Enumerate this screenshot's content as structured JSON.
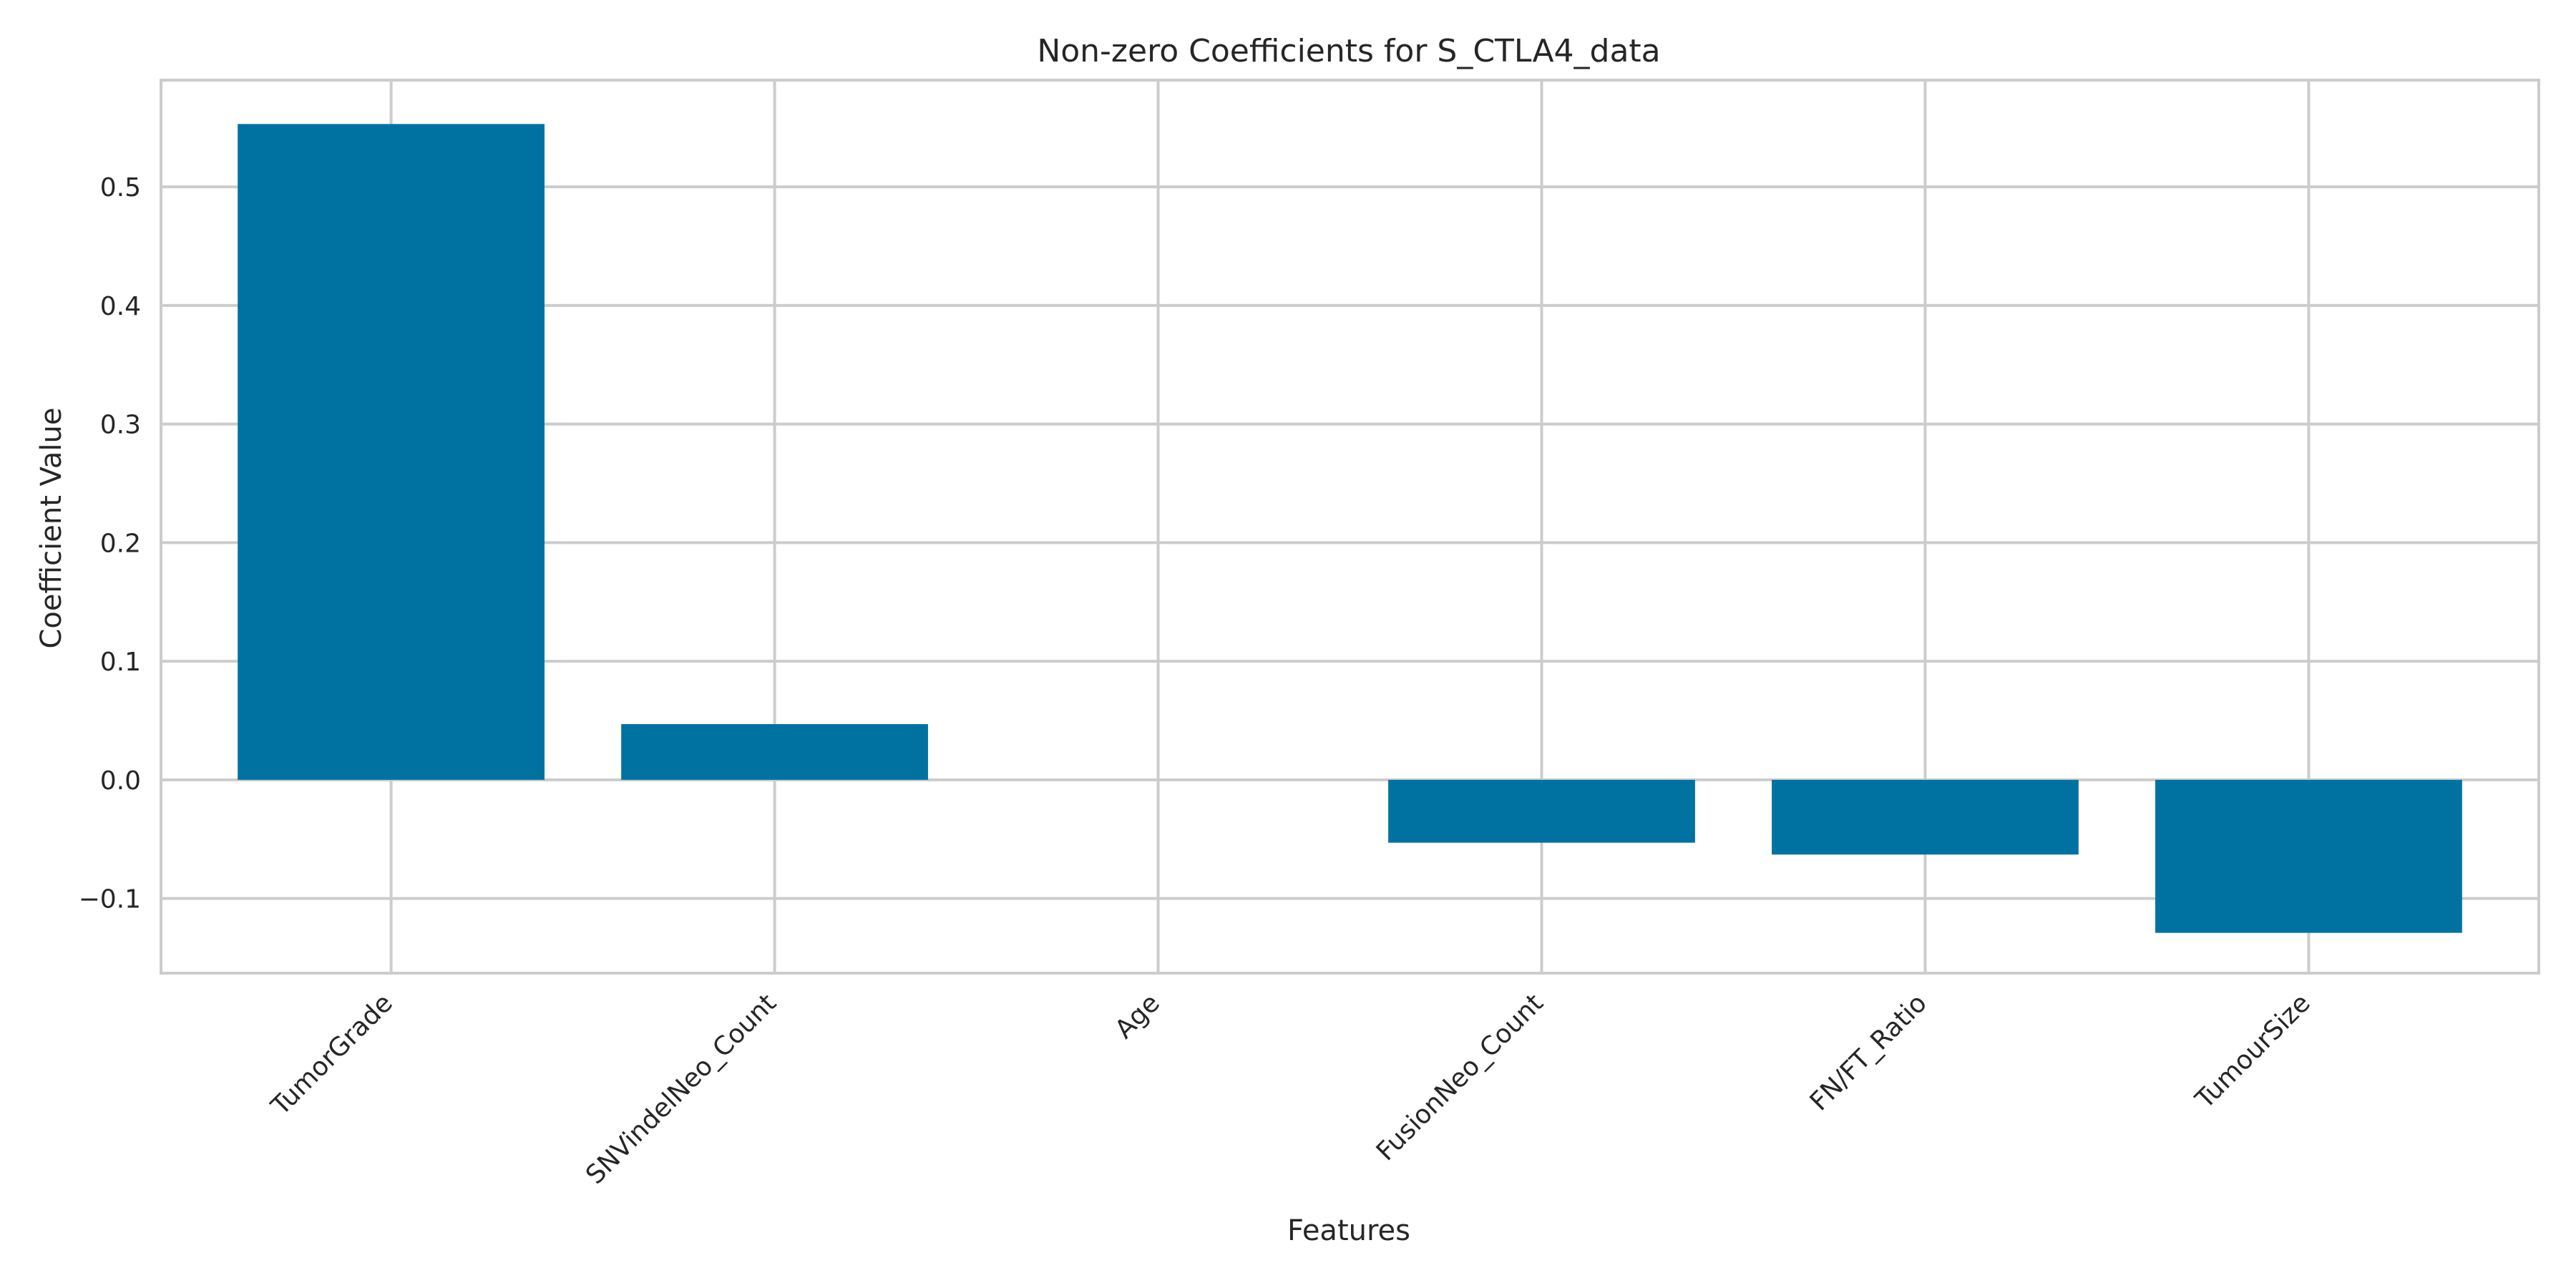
{
  "chart_data": {
    "type": "bar",
    "title": "Non-zero Coefficients for S_CTLA4_data",
    "xlabel": "Features",
    "ylabel": "Coefficient Value",
    "categories": [
      "TumorGrade",
      "SNVindelNeo_Count",
      "Age",
      "FusionNeo_Count",
      "FN/FT_Ratio",
      "TumourSize"
    ],
    "values": [
      0.553,
      0.047,
      0.0,
      -0.053,
      -0.063,
      -0.129
    ],
    "ylim": [
      -0.163,
      0.59
    ],
    "yticks": [
      -0.1,
      0.0,
      0.1,
      0.2,
      0.3,
      0.4,
      0.5
    ],
    "ytick_labels": [
      "−0.1",
      "0.0",
      "0.1",
      "0.2",
      "0.3",
      "0.4",
      "0.5"
    ],
    "grid": true,
    "bar_color": "#0072a2",
    "grid_color": "#cccccc"
  }
}
